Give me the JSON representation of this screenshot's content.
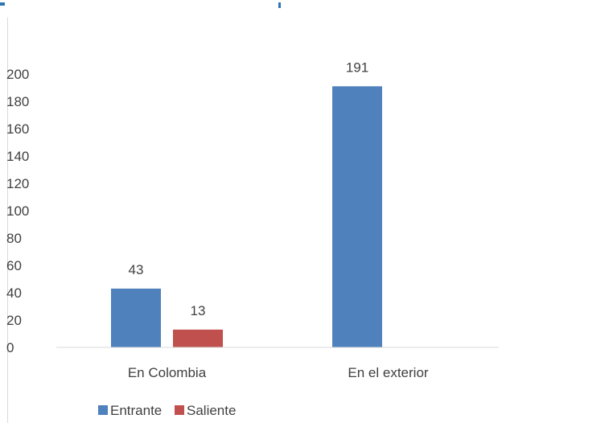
{
  "chart_data": {
    "type": "bar",
    "title": "",
    "xlabel": "",
    "ylabel": "",
    "categories": [
      "En Colombia",
      "En el exterior"
    ],
    "series": [
      {
        "name": "Entrante",
        "color": "#4f81bd",
        "values": [
          43,
          191
        ]
      },
      {
        "name": "Saliente",
        "color": "#c0504d",
        "values": [
          13,
          null
        ]
      }
    ],
    "data_labels": [
      [
        "43",
        "191"
      ],
      [
        "13",
        ""
      ]
    ],
    "ylim": [
      0,
      200
    ],
    "y_ticks": [
      0,
      20,
      40,
      60,
      80,
      100,
      120,
      140,
      160,
      180,
      200
    ],
    "y_tick_labels": [
      "0",
      "20",
      "40",
      "60",
      "80",
      "100",
      "120",
      "140",
      "160",
      "180",
      "200"
    ],
    "grid": false,
    "legend_position": "bottom-left"
  }
}
